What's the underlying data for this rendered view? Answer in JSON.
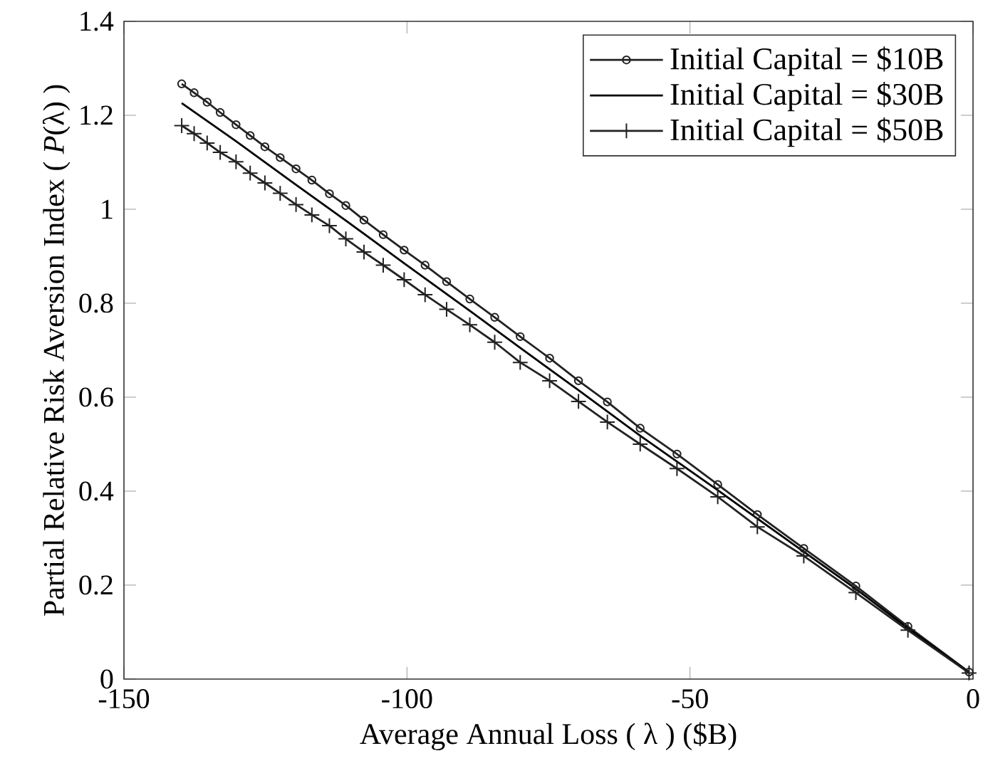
{
  "chart_data": {
    "type": "line",
    "xlabel": "Average Annual Loss ( λ ) ($B)",
    "ylabel": "Partial Relative Risk Aversion Index ( *P*(λ) )",
    "xlim": [
      -150,
      0
    ],
    "xticks": [
      -150,
      -100,
      -50,
      0
    ],
    "ylim": [
      0,
      1.4
    ],
    "yticks": [
      0,
      0.2,
      0.4,
      0.6,
      0.8,
      1,
      1.2,
      1.4
    ],
    "grid": false,
    "legend": "top right",
    "line_style": "solid",
    "series": [
      {
        "name": "Initial Capital = $10B",
        "color": "#222222",
        "marker": "circle",
        "x": [
          -139.8,
          -137.6,
          -135.3,
          -133.0,
          -130.2,
          -127.7,
          -125.1,
          -122.4,
          -119.6,
          -116.8,
          -113.7,
          -110.8,
          -107.6,
          -104.2,
          -100.5,
          -96.8,
          -93.0,
          -88.9,
          -84.5,
          -80.0,
          -74.8,
          -69.7,
          -64.6,
          -58.8,
          -52.3,
          -45.1,
          -38.1,
          -29.9,
          -20.7,
          -11.5,
          -0.7
        ],
        "values": [
          1.267,
          1.248,
          1.228,
          1.206,
          1.18,
          1.157,
          1.133,
          1.11,
          1.086,
          1.062,
          1.033,
          1.008,
          0.977,
          0.946,
          0.913,
          0.881,
          0.846,
          0.809,
          0.77,
          0.729,
          0.683,
          0.635,
          0.59,
          0.534,
          0.479,
          0.414,
          0.35,
          0.278,
          0.198,
          0.112,
          0.015
        ]
      },
      {
        "name": "Initial Capital = $30B",
        "color": "#000000",
        "marker": "none",
        "x": [
          -139.8,
          -130.2,
          -119.6,
          -110.8,
          -100.5,
          -88.9,
          -80.0,
          -69.7,
          -58.8,
          -45.1,
          -29.9,
          -20.7,
          -11.5,
          -0.7
        ],
        "values": [
          1.226,
          1.145,
          1.052,
          0.976,
          0.885,
          0.784,
          0.705,
          0.615,
          0.518,
          0.402,
          0.271,
          0.192,
          0.108,
          0.014
        ]
      },
      {
        "name": "Initial Capital = $50B",
        "color": "#222222",
        "marker": "cross",
        "x": [
          -139.8,
          -137.6,
          -135.3,
          -133.0,
          -130.2,
          -127.7,
          -125.1,
          -122.4,
          -119.6,
          -116.8,
          -113.7,
          -110.8,
          -107.6,
          -104.2,
          -100.5,
          -96.8,
          -93.0,
          -88.9,
          -84.5,
          -80.0,
          -74.8,
          -69.7,
          -64.6,
          -58.8,
          -52.3,
          -45.1,
          -38.1,
          -29.9,
          -20.7,
          -11.5,
          -0.7
        ],
        "values": [
          1.178,
          1.161,
          1.141,
          1.121,
          1.101,
          1.077,
          1.056,
          1.034,
          1.01,
          0.988,
          0.965,
          0.937,
          0.909,
          0.881,
          0.85,
          0.818,
          0.787,
          0.754,
          0.717,
          0.674,
          0.635,
          0.591,
          0.547,
          0.5,
          0.448,
          0.388,
          0.324,
          0.262,
          0.184,
          0.104,
          0.013
        ]
      }
    ]
  }
}
